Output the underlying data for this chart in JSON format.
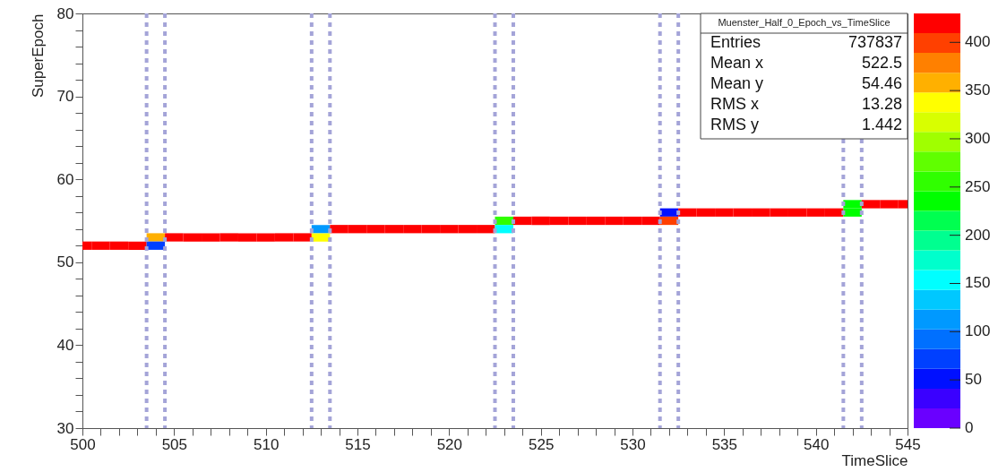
{
  "chart_data": {
    "type": "heatmap",
    "title": "Muenster_Half_0_Epoch_vs_TimeSlice",
    "xlabel": "TimeSlice",
    "ylabel": "SuperEpoch",
    "x": [
      500,
      501,
      502,
      503,
      504,
      505,
      506,
      507,
      508,
      509,
      510,
      511,
      512,
      513,
      514,
      515,
      516,
      517,
      518,
      519,
      520,
      521,
      522,
      523,
      524,
      525,
      526,
      527,
      528,
      529,
      530,
      531,
      532,
      533,
      534,
      535,
      536,
      537,
      538,
      539,
      540,
      541,
      542,
      543,
      544,
      545
    ],
    "y": [
      57,
      56,
      55,
      54,
      53,
      52
    ],
    "cells": [
      [
        null,
        null,
        null,
        null,
        null,
        null,
        null,
        null,
        null,
        null,
        null,
        null,
        null,
        null,
        null,
        null,
        null,
        null,
        null,
        null,
        null,
        null,
        null,
        null,
        null,
        null,
        null,
        null,
        null,
        null,
        null,
        null,
        null,
        null,
        null,
        null,
        null,
        null,
        null,
        null,
        null,
        null,
        230,
        420,
        420,
        420
      ],
      [
        null,
        null,
        null,
        null,
        null,
        null,
        null,
        null,
        null,
        null,
        null,
        null,
        null,
        null,
        null,
        null,
        null,
        null,
        null,
        null,
        null,
        null,
        null,
        null,
        null,
        null,
        null,
        null,
        null,
        null,
        null,
        null,
        60,
        420,
        420,
        420,
        420,
        420,
        420,
        420,
        420,
        420,
        230,
        null,
        null,
        null
      ],
      [
        null,
        null,
        null,
        null,
        null,
        null,
        null,
        null,
        null,
        null,
        null,
        null,
        null,
        null,
        null,
        null,
        null,
        null,
        null,
        null,
        null,
        null,
        null,
        250,
        420,
        420,
        420,
        420,
        420,
        420,
        420,
        420,
        400,
        null,
        null,
        null,
        null,
        null,
        null,
        null,
        null,
        null,
        null,
        null,
        null,
        null
      ],
      [
        null,
        null,
        null,
        null,
        null,
        null,
        null,
        null,
        null,
        null,
        null,
        null,
        null,
        110,
        420,
        420,
        420,
        420,
        420,
        420,
        420,
        420,
        420,
        160,
        null,
        null,
        null,
        null,
        null,
        null,
        null,
        null,
        null,
        null,
        null,
        null,
        null,
        null,
        null,
        null,
        null,
        null,
        null,
        null,
        null,
        null
      ],
      [
        null,
        null,
        null,
        null,
        360,
        420,
        420,
        420,
        420,
        420,
        420,
        420,
        420,
        330,
        null,
        null,
        null,
        null,
        null,
        null,
        null,
        null,
        null,
        null,
        null,
        null,
        null,
        null,
        null,
        null,
        null,
        null,
        null,
        null,
        null,
        null,
        null,
        null,
        null,
        null,
        null,
        null,
        null,
        null,
        null,
        null
      ],
      [
        420,
        420,
        420,
        420,
        80,
        null,
        null,
        null,
        null,
        null,
        null,
        null,
        null,
        null,
        null,
        null,
        null,
        null,
        null,
        null,
        null,
        null,
        null,
        null,
        null,
        null,
        null,
        null,
        null,
        null,
        null,
        null,
        null,
        null,
        null,
        null,
        null,
        null,
        null,
        null,
        null,
        null,
        null,
        null,
        null,
        null
      ]
    ],
    "colors": [
      "#6a00ff",
      "#3a00ff",
      "#0010ff",
      "#0040ff",
      "#0070ff",
      "#0099ff",
      "#00c8ff",
      "#00ffff",
      "#00ffcc",
      "#00ff90",
      "#00ff50",
      "#00ff00",
      "#30ff00",
      "#60ff00",
      "#a0ff00",
      "#d8ff00",
      "#ffff00",
      "#ffb000",
      "#ff8000",
      "#ff4000",
      "#ff0000"
    ],
    "clim": [
      0,
      430
    ],
    "cticks": [
      0,
      50,
      100,
      150,
      200,
      250,
      300,
      350,
      400
    ],
    "xlim": [
      500,
      545
    ],
    "xticks": [
      500,
      {
        "value": 501,
        "label": null
      },
      {
        "value": 502,
        "label": null
      },
      {
        "value": 503,
        "label": null
      },
      {
        "value": 504,
        "label": null
      },
      505,
      {
        "value": 506,
        "label": null
      },
      {
        "value": 507,
        "label": null
      },
      {
        "value": 508,
        "label": null
      },
      {
        "value": 509,
        "label": null
      },
      510,
      {
        "value": 511,
        "label": null
      },
      {
        "value": 512,
        "label": null
      },
      {
        "value": 513,
        "label": null
      },
      {
        "value": 514,
        "label": null
      },
      515,
      {
        "value": 516,
        "label": null
      },
      {
        "value": 517,
        "label": null
      },
      {
        "value": 518,
        "label": null
      },
      {
        "value": 519,
        "label": null
      },
      520,
      {
        "value": 521,
        "label": null
      },
      {
        "value": 522,
        "label": null
      },
      {
        "value": 523,
        "label": null
      },
      {
        "value": 524,
        "label": null
      },
      525,
      {
        "value": 526,
        "label": null
      },
      {
        "value": 527,
        "label": null
      },
      {
        "value": 528,
        "label": null
      },
      {
        "value": 529,
        "label": null
      },
      530,
      {
        "value": 531,
        "label": null
      },
      {
        "value": 532,
        "label": null
      },
      {
        "value": 533,
        "label": null
      },
      {
        "value": 534,
        "label": null
      },
      535,
      {
        "value": 536,
        "label": null
      },
      {
        "value": 537,
        "label": null
      },
      {
        "value": 538,
        "label": null
      },
      {
        "value": 539,
        "label": null
      },
      540,
      {
        "value": 541,
        "label": null
      },
      {
        "value": 542,
        "label": null
      },
      {
        "value": 543,
        "label": null
      },
      {
        "value": 544,
        "label": null
      },
      545
    ],
    "ylim": [
      30,
      80
    ],
    "yticks": [
      30,
      {
        "value": 32,
        "label": null
      },
      {
        "value": 34,
        "label": null
      },
      {
        "value": 36,
        "label": null
      },
      {
        "value": 38,
        "label": null
      },
      40,
      {
        "value": 42,
        "label": null
      },
      {
        "value": 44,
        "label": null
      },
      {
        "value": 46,
        "label": null
      },
      {
        "value": 48,
        "label": null
      },
      50,
      {
        "value": 52,
        "label": null
      },
      {
        "value": 54,
        "label": null
      },
      {
        "value": 56,
        "label": null
      },
      {
        "value": 58,
        "label": null
      },
      60,
      {
        "value": 62,
        "label": null
      },
      {
        "value": 64,
        "label": null
      },
      {
        "value": 66,
        "label": null
      },
      {
        "value": 68,
        "label": null
      },
      70,
      {
        "value": 72,
        "label": null
      },
      {
        "value": 74,
        "label": null
      },
      {
        "value": 76,
        "label": null
      },
      {
        "value": 78,
        "label": null
      },
      80
    ],
    "ref_lines": [
      {
        "axis": "x",
        "value": 503.5,
        "color": "#a4a4d8",
        "line_style": "dashed"
      },
      {
        "axis": "x",
        "value": 504.5,
        "color": "#a4a4d8",
        "line_style": "dashed"
      },
      {
        "axis": "x",
        "value": 512.5,
        "color": "#a4a4d8",
        "line_style": "dashed"
      },
      {
        "axis": "x",
        "value": 513.5,
        "color": "#a4a4d8",
        "line_style": "dashed"
      },
      {
        "axis": "x",
        "value": 522.5,
        "color": "#a4a4d8",
        "line_style": "dashed"
      },
      {
        "axis": "x",
        "value": 523.5,
        "color": "#a4a4d8",
        "line_style": "dashed"
      },
      {
        "axis": "x",
        "value": 531.5,
        "color": "#a4a4d8",
        "line_style": "dashed"
      },
      {
        "axis": "x",
        "value": 532.5,
        "color": "#a4a4d8",
        "line_style": "dashed"
      },
      {
        "axis": "x",
        "value": 541.5,
        "color": "#a4a4d8",
        "line_style": "dashed"
      },
      {
        "axis": "x",
        "value": 542.5,
        "color": "#a4a4d8",
        "line_style": "dashed"
      }
    ],
    "annotations": [
      "Entries 737837",
      "Mean x 522.5",
      "Mean y 54.46",
      "RMS x 13.28",
      "RMS y 1.442"
    ]
  }
}
